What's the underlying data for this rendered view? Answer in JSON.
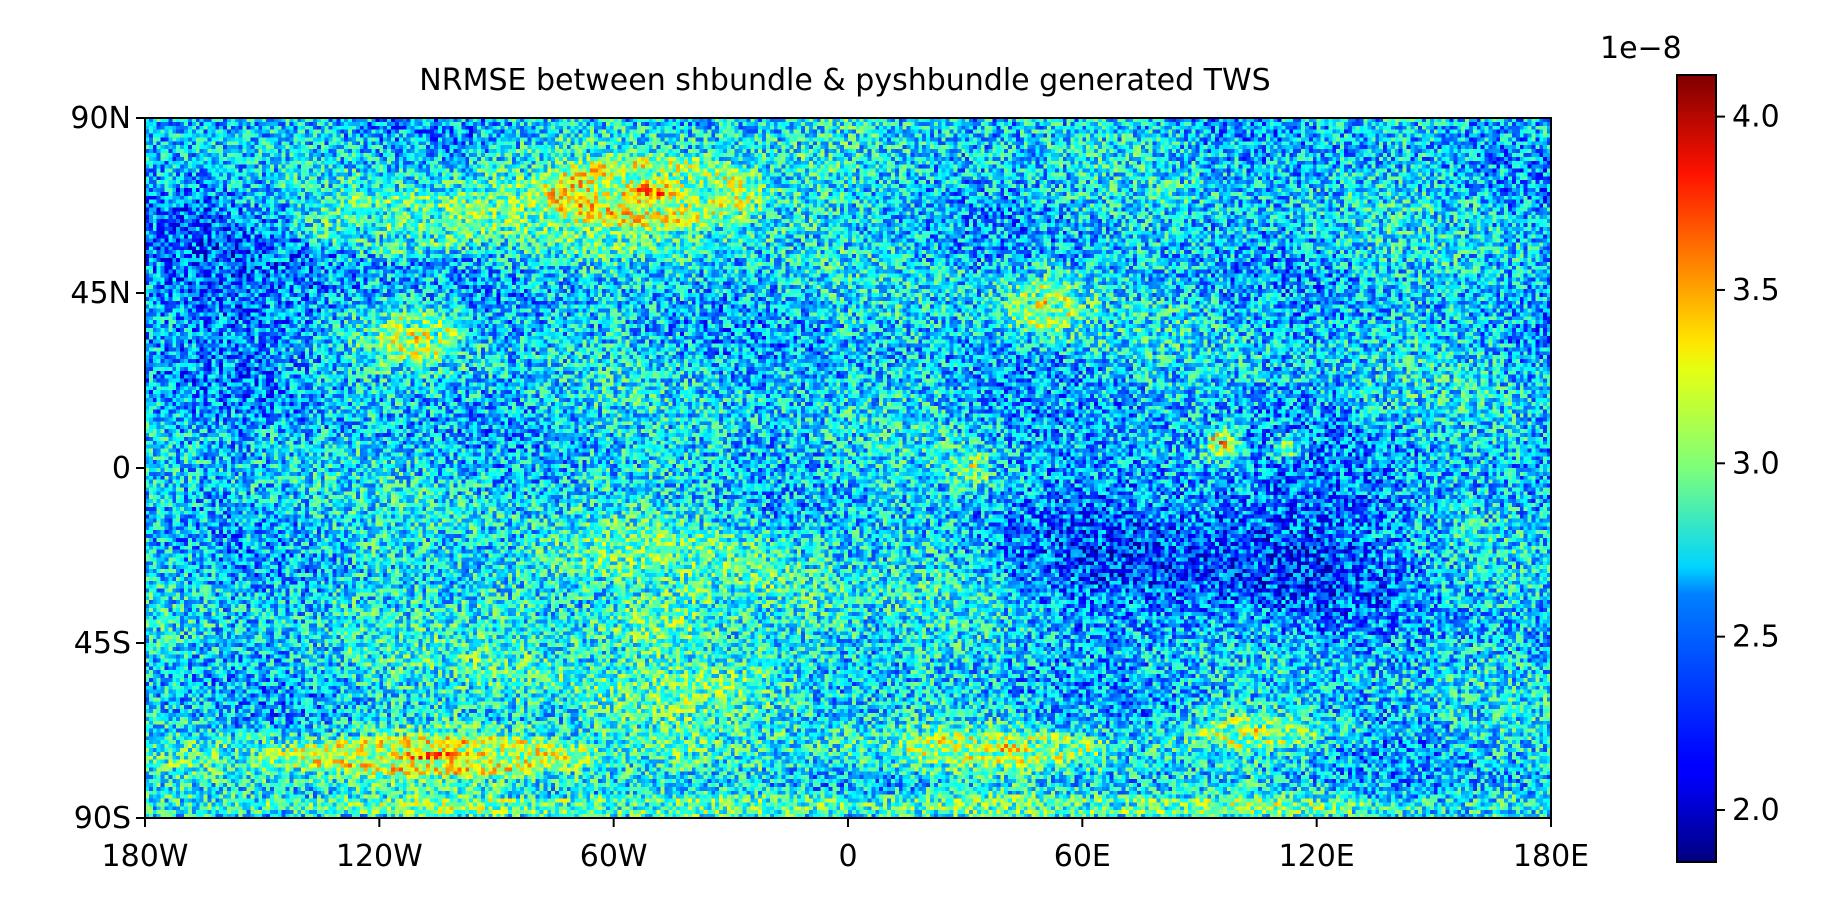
{
  "chart_data": {
    "type": "heatmap",
    "title": "NRMSE between shbundle & pyshbundle generated TWS",
    "xlabel": "",
    "ylabel": "",
    "xlim": [
      -180,
      180
    ],
    "ylim": [
      -90,
      90
    ],
    "x_ticks": [
      {
        "value": -180,
        "label": "180W"
      },
      {
        "value": -120,
        "label": "120W"
      },
      {
        "value": -60,
        "label": "60W"
      },
      {
        "value": 0,
        "label": "0"
      },
      {
        "value": 60,
        "label": "60E"
      },
      {
        "value": 120,
        "label": "120E"
      },
      {
        "value": 180,
        "label": "180E"
      }
    ],
    "y_ticks": [
      {
        "value": 90,
        "label": "90N"
      },
      {
        "value": 45,
        "label": "45N"
      },
      {
        "value": 0,
        "label": "0"
      },
      {
        "value": -45,
        "label": "45S"
      },
      {
        "value": -90,
        "label": "90S"
      }
    ],
    "grid": false,
    "colormap": "jet",
    "colorbar": {
      "min": 1.85,
      "max": 4.12,
      "exponent_label": "1e−8",
      "ticks": [
        {
          "value": 2.0,
          "label": "2.0"
        },
        {
          "value": 2.5,
          "label": "2.5"
        },
        {
          "value": 3.0,
          "label": "3.0"
        },
        {
          "value": 3.5,
          "label": "3.5"
        },
        {
          "value": 4.0,
          "label": "4.0"
        }
      ]
    },
    "background_level": 2.6,
    "noise_amplitude": 0.5,
    "features": [
      {
        "name": "north-atlantic-swirl",
        "lon": -50,
        "lat": 71,
        "rlon": 34,
        "rlat": 11,
        "amp": 0.95
      },
      {
        "name": "north-pacific-swirl",
        "lon": -115,
        "lat": 63,
        "rlon": 30,
        "rlat": 10,
        "amp": 0.45
      },
      {
        "name": "east-pacific-blob",
        "lon": -110,
        "lat": 34,
        "rlon": 12,
        "rlat": 8,
        "amp": 0.7
      },
      {
        "name": "central-asia-blob",
        "lon": 50,
        "lat": 42,
        "rlon": 10,
        "rlat": 8,
        "amp": 0.7
      },
      {
        "name": "maritime-continent-spot",
        "lon": 96,
        "lat": 6,
        "rlon": 4,
        "rlat": 4,
        "amp": 1.2
      },
      {
        "name": "west-pacific-spot",
        "lon": 113,
        "lat": 5,
        "rlon": 4,
        "rlat": 3,
        "amp": 0.8
      },
      {
        "name": "africa-spot",
        "lon": 32,
        "lat": 0,
        "rlon": 5,
        "rlat": 5,
        "amp": 0.55
      },
      {
        "name": "southern-pacific-swirl",
        "lon": -105,
        "lat": -74,
        "rlon": 48,
        "rlat": 6,
        "amp": 1.0
      },
      {
        "name": "southern-indian-swirl",
        "lon": 40,
        "lat": -72,
        "rlon": 32,
        "rlat": 5,
        "amp": 0.65
      },
      {
        "name": "southern-east-swirl",
        "lon": 105,
        "lat": -68,
        "rlon": 18,
        "rlat": 5,
        "amp": 0.7
      },
      {
        "name": "south-atlantic-band",
        "lon": -50,
        "lat": -40,
        "rlon": 60,
        "rlat": 30,
        "amp": 0.35
      },
      {
        "name": "antarctic-band",
        "lon": 0,
        "lat": -87,
        "rlon": 180,
        "rlat": 3,
        "amp": 0.5
      }
    ],
    "low_regions": [
      {
        "name": "north-pacific-low",
        "lon": -150,
        "lat": 50,
        "rlon": 30,
        "rlat": 25,
        "amp": 0.25
      },
      {
        "name": "indian-ocean-low",
        "lon": 80,
        "lat": -20,
        "rlon": 40,
        "rlat": 25,
        "amp": 0.25
      },
      {
        "name": "west-pacific-low",
        "lon": 120,
        "lat": -20,
        "rlon": 30,
        "rlat": 20,
        "amp": 0.2
      }
    ]
  }
}
